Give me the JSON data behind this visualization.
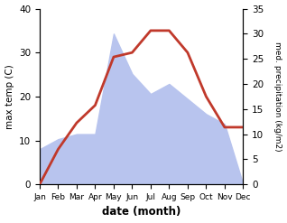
{
  "months": [
    "Jan",
    "Feb",
    "Mar",
    "Apr",
    "May",
    "Jun",
    "Jul",
    "Aug",
    "Sep",
    "Oct",
    "Nov",
    "Dec"
  ],
  "temperature": [
    0,
    8,
    14,
    18,
    29,
    30,
    35,
    35,
    30,
    20,
    13,
    13
  ],
  "precipitation": [
    7,
    9,
    10,
    10,
    30,
    22,
    18,
    20,
    17,
    14,
    12,
    0
  ],
  "temp_color": "#c0392b",
  "precip_color": "#b8c4ee",
  "xlabel": "date (month)",
  "ylabel_left": "max temp (C)",
  "ylabel_right": "med. precipitation (kg/m2)",
  "ylim_left": [
    0,
    40
  ],
  "ylim_right": [
    0,
    35
  ],
  "yticks_left": [
    0,
    10,
    20,
    30,
    40
  ],
  "yticks_right": [
    0,
    5,
    10,
    15,
    20,
    25,
    30,
    35
  ],
  "bg_color": "#ffffff",
  "line_width": 2.0
}
